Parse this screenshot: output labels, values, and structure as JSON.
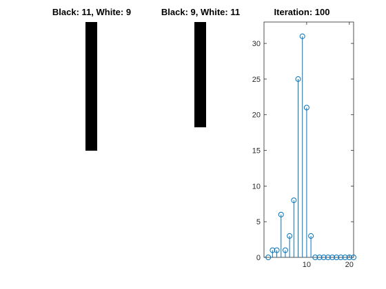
{
  "panels": [
    {
      "title": "Black: 11, White: 9",
      "black": 11,
      "white": 9
    },
    {
      "title": "Black: 9, White: 11",
      "black": 9,
      "white": 11
    }
  ],
  "colors": {
    "black": "#000000",
    "white": "#ffffff",
    "series": "#0072BD",
    "axis": "#262626"
  },
  "chart_data": {
    "type": "stem",
    "title": "Iteration: 100",
    "xlabel": "",
    "ylabel": "",
    "x": [
      1,
      2,
      3,
      4,
      5,
      6,
      7,
      8,
      9,
      10,
      11,
      12,
      13,
      14,
      15,
      16,
      17,
      18,
      19,
      20,
      21
    ],
    "values": [
      0,
      1,
      1,
      6,
      1,
      3,
      8,
      25,
      31,
      21,
      3,
      0,
      0,
      0,
      0,
      0,
      0,
      0,
      0,
      0,
      0
    ],
    "xlim": [
      0,
      21
    ],
    "ylim": [
      0,
      33
    ],
    "xticks": [
      10,
      20
    ],
    "yticks": [
      0,
      5,
      10,
      15,
      20,
      25,
      30
    ],
    "marker": "circle",
    "grid": false
  }
}
